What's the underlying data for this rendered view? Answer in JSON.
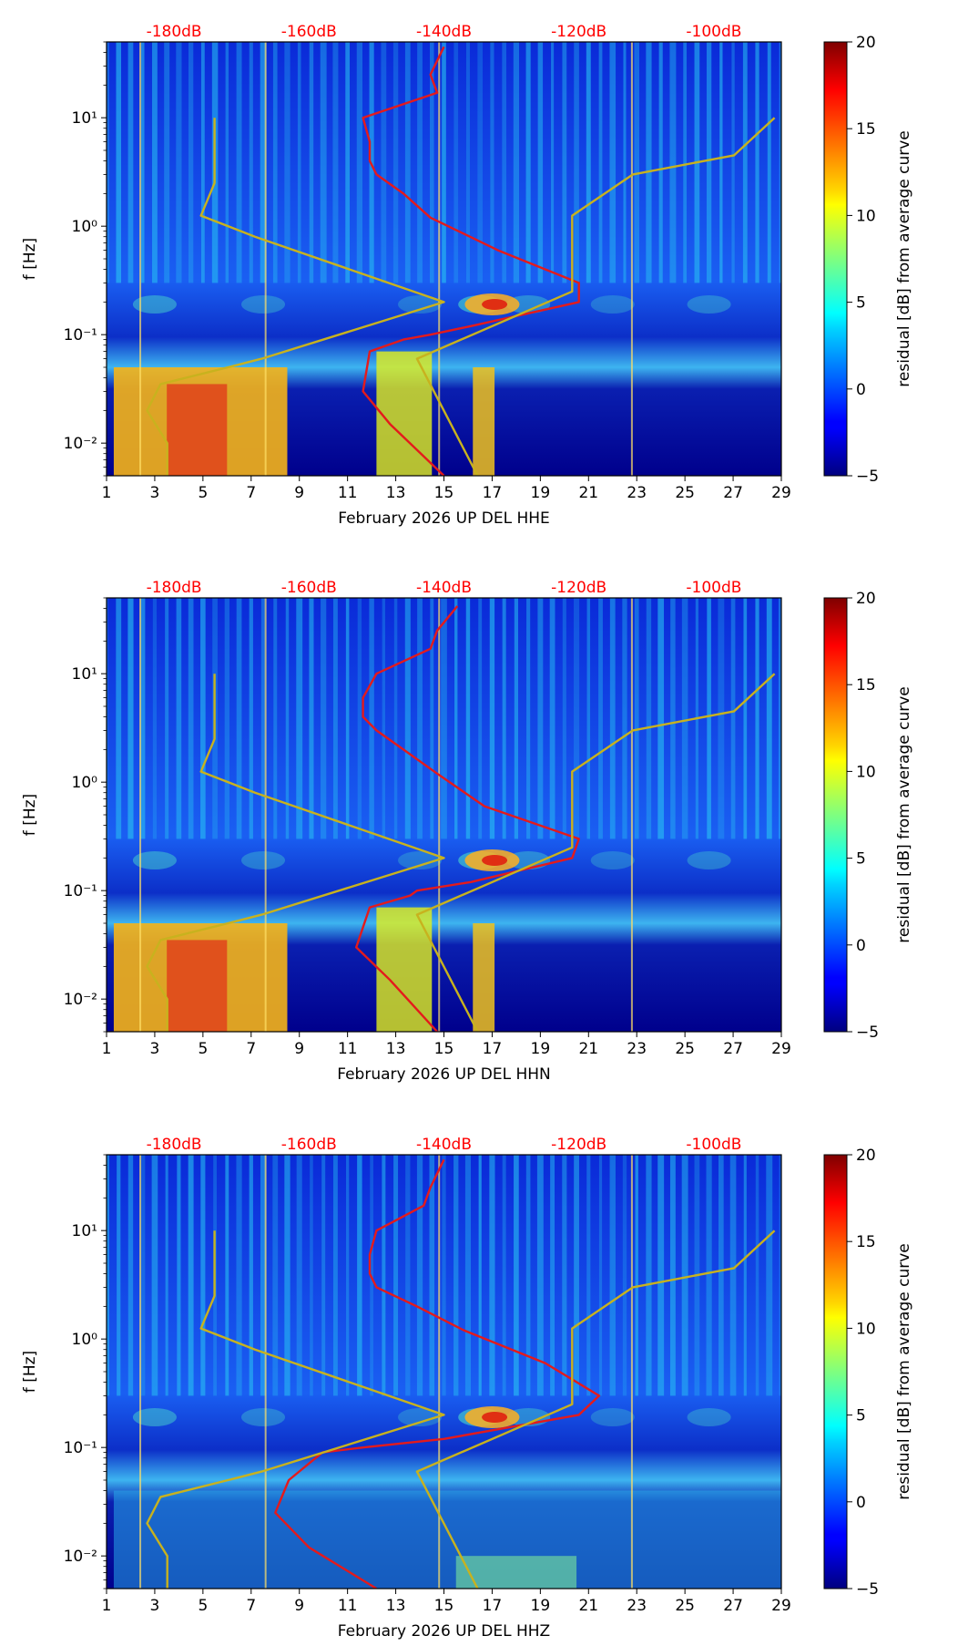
{
  "figure": {
    "tick_label_days": [
      "1",
      "3",
      "5",
      "7",
      "9",
      "11",
      "13",
      "15",
      "17",
      "19",
      "21",
      "23",
      "25",
      "27",
      "29"
    ],
    "tick_values_days": [
      1,
      3,
      5,
      7,
      9,
      11,
      13,
      15,
      17,
      19,
      21,
      23,
      25,
      27,
      29
    ],
    "y_tick_labels": [
      "10⁻²",
      "10⁻¹",
      "10⁰",
      "10¹"
    ],
    "y_tick_values": [
      0.01,
      0.1,
      1,
      10
    ],
    "top_db_labels": [
      "-180dB",
      "-160dB",
      "-140dB",
      "-120dB",
      "-100dB"
    ],
    "top_db_values": [
      -180,
      -160,
      -140,
      -120,
      -100
    ],
    "colorbar_ticks": [
      "20",
      "15",
      "10",
      "5",
      "0",
      "−5"
    ],
    "colorbar_values": [
      20,
      15,
      10,
      5,
      0,
      -5
    ],
    "colorbar_label": "residual [dB] from average curve",
    "ylabel": "f [Hz]",
    "colors": {
      "red_curve": "#e41a1c",
      "olive_curve": "#c8b21e",
      "db_label": "#ff0000"
    }
  },
  "chart_data": [
    {
      "type": "heatmap",
      "title": "",
      "xlabel": "February 2026 UP DEL  HHE",
      "ylabel": "f [Hz]",
      "xlim": [
        1,
        29
      ],
      "ylim": [
        0.005,
        50
      ],
      "yscale": "log",
      "clim": [
        -5,
        20
      ],
      "colormap": "jet",
      "series": [
        {
          "name": "median PSD (red)",
          "db": [
            -140,
            -142,
            -141,
            -152,
            -151,
            -151,
            -150,
            -146,
            -142,
            -132,
            -120,
            -120,
            -136,
            -142,
            -146,
            -151,
            -152,
            -148,
            -140
          ],
          "freq": [
            45,
            25,
            17,
            10,
            6,
            4,
            3,
            2,
            1.2,
            0.6,
            0.3,
            0.2,
            0.12,
            0.1,
            0.09,
            0.07,
            0.03,
            0.015,
            0.005
          ]
        },
        {
          "name": "noise model (olive)",
          "db": [
            -174,
            -174,
            -176,
            -168,
            -140,
            -167,
            -172,
            -182,
            -184,
            -181,
            -181
          ],
          "freq": [
            10,
            2.5,
            1.25,
            0.8,
            0.2,
            0.06,
            0.05,
            0.035,
            0.02,
            0.01,
            0.005
          ]
        },
        {
          "name": "noise model upper (olive)",
          "db": [
            -91,
            -97,
            -112,
            -121,
            -121,
            -144,
            -135
          ],
          "freq": [
            10,
            4.5,
            3,
            1.25,
            0.25,
            0.06,
            0.005
          ]
        }
      ]
    },
    {
      "type": "heatmap",
      "title": "",
      "xlabel": "February 2026 UP DEL  HHN",
      "ylabel": "f [Hz]",
      "xlim": [
        1,
        29
      ],
      "ylim": [
        0.005,
        50
      ],
      "yscale": "log",
      "clim": [
        -5,
        20
      ],
      "colormap": "jet",
      "series": [
        {
          "name": "median PSD (red)",
          "db": [
            -138,
            -141,
            -142,
            -150,
            -152,
            -152,
            -150,
            -146,
            -141,
            -134,
            -120,
            -121,
            -136,
            -144,
            -145,
            -151,
            -153,
            -148,
            -141
          ],
          "freq": [
            42,
            25,
            17,
            10,
            6,
            4,
            3,
            2,
            1.2,
            0.6,
            0.3,
            0.2,
            0.12,
            0.1,
            0.09,
            0.07,
            0.03,
            0.015,
            0.005
          ]
        },
        {
          "name": "noise model (olive)",
          "db": [
            -174,
            -174,
            -176,
            -168,
            -140,
            -167,
            -172,
            -182,
            -184,
            -181,
            -181
          ],
          "freq": [
            10,
            2.5,
            1.25,
            0.8,
            0.2,
            0.06,
            0.05,
            0.035,
            0.02,
            0.01,
            0.005
          ]
        },
        {
          "name": "noise model upper (olive)",
          "db": [
            -91,
            -97,
            -112,
            -121,
            -121,
            -144,
            -135
          ],
          "freq": [
            10,
            4.5,
            3,
            1.25,
            0.25,
            0.06,
            0.005
          ]
        }
      ]
    },
    {
      "type": "heatmap",
      "title": "",
      "xlabel": "February 2026 UP DEL  HHZ",
      "ylabel": "f [Hz]",
      "xlim": [
        1,
        29
      ],
      "ylim": [
        0.005,
        50
      ],
      "yscale": "log",
      "clim": [
        -5,
        20
      ],
      "colormap": "jet",
      "series": [
        {
          "name": "median PSD (red)",
          "db": [
            -140,
            -142,
            -143,
            -150,
            -151,
            -151,
            -150,
            -144,
            -137,
            -125,
            -117,
            -120,
            -140,
            -152,
            -158,
            -163,
            -165,
            -160,
            -150
          ],
          "freq": [
            45,
            25,
            17,
            10,
            6,
            4,
            3,
            2,
            1.2,
            0.6,
            0.3,
            0.2,
            0.12,
            0.1,
            0.09,
            0.05,
            0.025,
            0.012,
            0.005
          ]
        },
        {
          "name": "noise model (olive)",
          "db": [
            -174,
            -174,
            -176,
            -168,
            -140,
            -167,
            -172,
            -182,
            -184,
            -181,
            -181
          ],
          "freq": [
            10,
            2.5,
            1.25,
            0.8,
            0.2,
            0.06,
            0.05,
            0.035,
            0.02,
            0.01,
            0.005
          ]
        },
        {
          "name": "noise model upper (olive)",
          "db": [
            -91,
            -97,
            -112,
            -121,
            -121,
            -144,
            -135
          ],
          "freq": [
            10,
            4.5,
            3,
            1.25,
            0.25,
            0.06,
            0.005
          ]
        }
      ]
    }
  ]
}
